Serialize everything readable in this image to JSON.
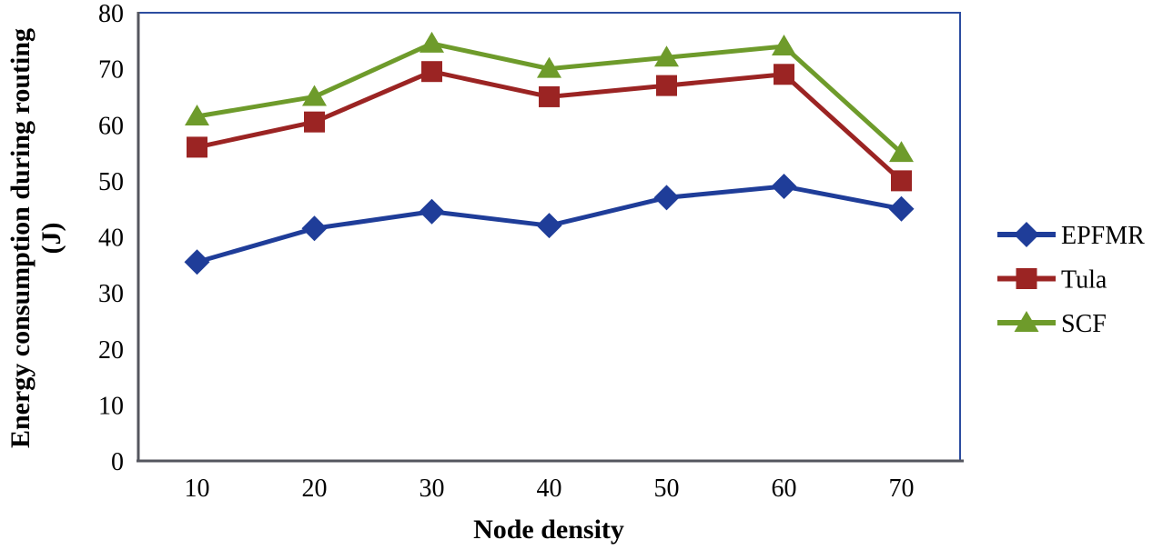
{
  "figure": {
    "background": "#FFFFFF"
  },
  "chart_data": {
    "type": "line",
    "x": [
      10,
      20,
      30,
      40,
      50,
      60,
      70
    ],
    "series": [
      {
        "name": "EPFMR",
        "marker": "diamond",
        "color": "#1F3D99",
        "values": [
          35.5,
          41.5,
          44.5,
          42,
          47,
          49,
          45
        ]
      },
      {
        "name": "Tula",
        "marker": "square",
        "color": "#9B2423",
        "values": [
          56,
          60.5,
          69.5,
          65,
          67,
          69,
          50
        ]
      },
      {
        "name": "SCF",
        "marker": "triangle",
        "color": "#6E9B2B",
        "values": [
          61.5,
          65,
          74.5,
          70,
          72,
          74,
          55
        ]
      }
    ],
    "xlabel": "Node density",
    "ylabel": "Energy consumption during routing (J)",
    "ylabel_lines": [
      "Energy consumption during routing",
      "(J)"
    ],
    "ylim": [
      0,
      80
    ],
    "yticks": [
      0,
      10,
      20,
      30,
      40,
      50,
      60,
      70,
      80
    ],
    "grid": false,
    "legend_position": "right",
    "colors": {
      "plot_border": "#2C4DA0",
      "axis_line": "#54565E",
      "text": "#000000",
      "background": "#FFFFFF"
    }
  }
}
